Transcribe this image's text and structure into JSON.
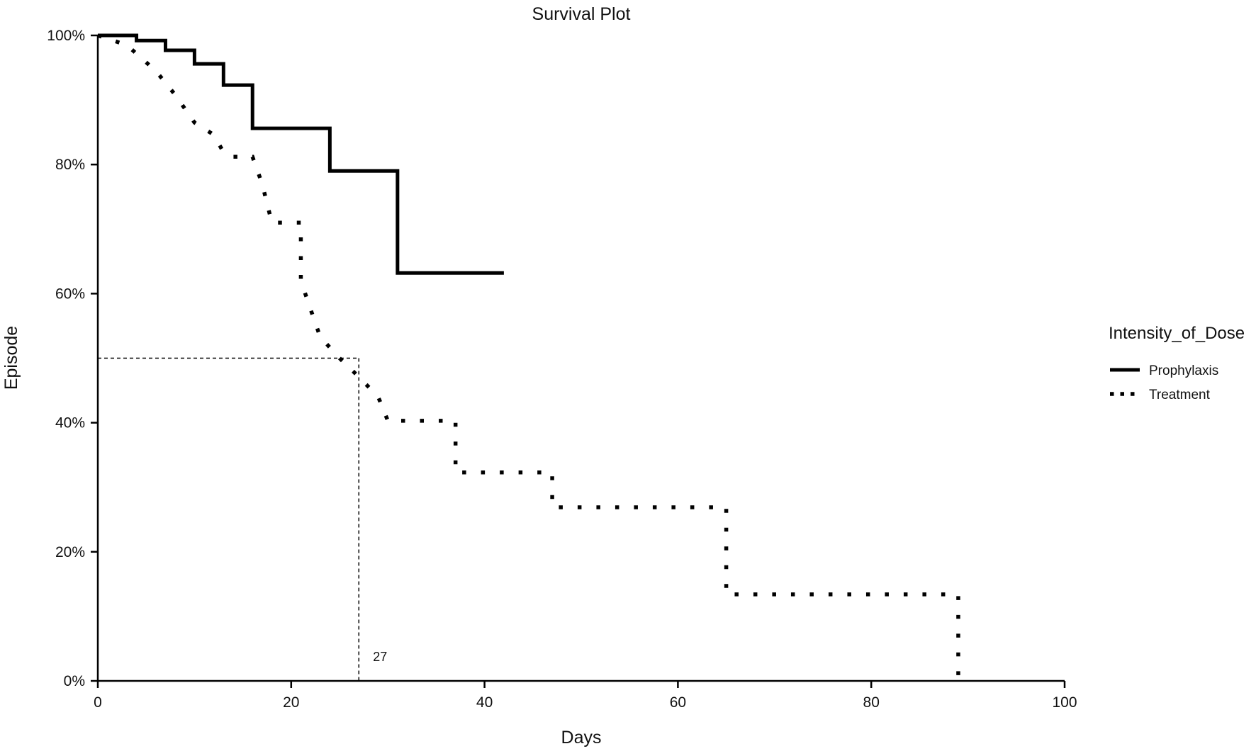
{
  "chart_data": {
    "type": "line",
    "title": "Survival Plot",
    "xlabel": "Days",
    "ylabel": "Episode",
    "xlim": [
      0,
      100
    ],
    "ylim": [
      0,
      100
    ],
    "xticks": [
      0,
      20,
      40,
      60,
      80,
      100
    ],
    "yticks": [
      0,
      20,
      40,
      60,
      80,
      100
    ],
    "ytick_labels": [
      "0%",
      "20%",
      "40%",
      "60%",
      "80%",
      "100%"
    ],
    "grid": false,
    "legend": {
      "title": "Intensity_of_Dose",
      "position": "right"
    },
    "series": [
      {
        "name": "Prophylaxis",
        "style": "solid",
        "step": true,
        "x": [
          0,
          4,
          7,
          10,
          13,
          16,
          24,
          31,
          42
        ],
        "y": [
          100,
          99.2,
          97.7,
          95.6,
          92.3,
          85.6,
          79.0,
          63.2,
          63.2
        ]
      },
      {
        "name": "Treatment",
        "style": "dotted",
        "step": false,
        "x": [
          0,
          3,
          6,
          8,
          10,
          12,
          13,
          14,
          16,
          17,
          18,
          19,
          21,
          21,
          22,
          23,
          25,
          27,
          29,
          30,
          37,
          37,
          47,
          47,
          65,
          65,
          89,
          89
        ],
        "y": [
          100,
          98.5,
          94.5,
          90.8,
          86.5,
          84.6,
          81.9,
          81.2,
          81.2,
          77.0,
          71.0,
          71.0,
          71.0,
          62.0,
          57.6,
          53.3,
          50.0,
          47.1,
          44.0,
          40.3,
          40.3,
          32.3,
          32.3,
          26.9,
          26.9,
          13.4,
          13.4,
          0
        ]
      }
    ],
    "annotations": [
      {
        "type": "median",
        "x": 27,
        "y": 50,
        "label": "27"
      }
    ]
  }
}
